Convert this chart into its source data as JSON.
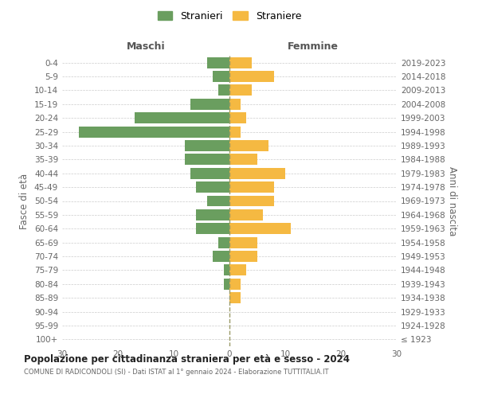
{
  "age_groups": [
    "100+",
    "95-99",
    "90-94",
    "85-89",
    "80-84",
    "75-79",
    "70-74",
    "65-69",
    "60-64",
    "55-59",
    "50-54",
    "45-49",
    "40-44",
    "35-39",
    "30-34",
    "25-29",
    "20-24",
    "15-19",
    "10-14",
    "5-9",
    "0-4"
  ],
  "birth_years": [
    "≤ 1923",
    "1924-1928",
    "1929-1933",
    "1934-1938",
    "1939-1943",
    "1944-1948",
    "1949-1953",
    "1954-1958",
    "1959-1963",
    "1964-1968",
    "1969-1973",
    "1974-1978",
    "1979-1983",
    "1984-1988",
    "1989-1993",
    "1994-1998",
    "1999-2003",
    "2004-2008",
    "2009-2013",
    "2014-2018",
    "2019-2023"
  ],
  "maschi": [
    0,
    0,
    0,
    0,
    1,
    1,
    3,
    2,
    6,
    6,
    4,
    6,
    7,
    8,
    8,
    27,
    17,
    7,
    2,
    3,
    4
  ],
  "femmine": [
    0,
    0,
    0,
    2,
    2,
    3,
    5,
    5,
    11,
    6,
    8,
    8,
    10,
    5,
    7,
    2,
    3,
    2,
    4,
    8,
    4
  ],
  "maschi_color": "#6a9e5f",
  "femmine_color": "#f5b942",
  "title": "Popolazione per cittadinanza straniera per età e sesso - 2024",
  "subtitle": "COMUNE DI RADICONDOLI (SI) - Dati ISTAT al 1° gennaio 2024 - Elaborazione TUTTITALIA.IT",
  "xlabel_left": "Maschi",
  "xlabel_right": "Femmine",
  "ylabel_left": "Fasce di età",
  "ylabel_right": "Anni di nascita",
  "legend_maschi": "Stranieri",
  "legend_femmine": "Straniere",
  "xlim": 30,
  "background_color": "#ffffff",
  "grid_color": "#cccccc",
  "bar_height": 0.8
}
